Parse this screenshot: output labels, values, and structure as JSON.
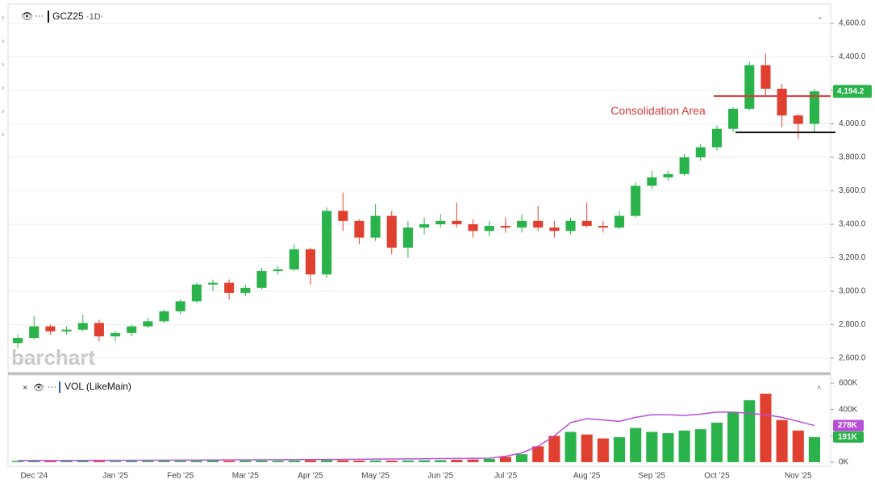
{
  "chart_data": [
    {
      "type": "candlestick",
      "symbol": "GCZ25",
      "interval": "·1D·",
      "watermark": "barchart",
      "categories": [
        null,
        "Dec '24",
        null,
        null,
        null,
        null,
        "Jan '25",
        null,
        null,
        null,
        "Feb '25",
        null,
        null,
        null,
        "Mar '25",
        null,
        null,
        null,
        "Apr '25",
        null,
        null,
        null,
        "May '25",
        null,
        null,
        null,
        "Jun '25",
        null,
        null,
        null,
        "Jul '25",
        null,
        null,
        null,
        null,
        "Aug '25",
        null,
        null,
        null,
        "Sep '25",
        null,
        null,
        null,
        "Oct '25",
        null,
        null,
        null,
        null,
        "Nov '25",
        null
      ],
      "open": [
        2690,
        2720,
        2790,
        2760,
        2770,
        2810,
        2730,
        2750,
        2790,
        2820,
        2880,
        2940,
        3040,
        3050,
        2990,
        3020,
        3120,
        3130,
        3250,
        3100,
        3480,
        3420,
        3320,
        3450,
        3260,
        3380,
        3400,
        3420,
        3400,
        3360,
        3390,
        3380,
        3420,
        3380,
        3360,
        3420,
        3390,
        3380,
        3450,
        3630,
        3680,
        3700,
        3800,
        3860,
        3970,
        4090,
        4350,
        4210,
        4050,
        4000
      ],
      "high": [
        2740,
        2850,
        2800,
        2790,
        2860,
        2830,
        2760,
        2800,
        2840,
        2890,
        2950,
        3050,
        3070,
        3070,
        3040,
        3140,
        3150,
        3280,
        3260,
        3500,
        3590,
        3430,
        3520,
        3480,
        3420,
        3440,
        3460,
        3530,
        3430,
        3420,
        3440,
        3460,
        3510,
        3420,
        3440,
        3530,
        3420,
        3480,
        3650,
        3720,
        3720,
        3820,
        3880,
        3990,
        4100,
        4370,
        4420,
        4240,
        4060,
        4210
      ],
      "low": [
        2660,
        2710,
        2740,
        2740,
        2760,
        2700,
        2700,
        2730,
        2780,
        2810,
        2860,
        2930,
        3000,
        2950,
        2970,
        3010,
        3100,
        3120,
        3040,
        3080,
        3360,
        3280,
        3300,
        3220,
        3200,
        3340,
        3380,
        3380,
        3320,
        3330,
        3350,
        3350,
        3360,
        3320,
        3340,
        3380,
        3350,
        3370,
        3440,
        3610,
        3660,
        3690,
        3780,
        3840,
        3950,
        4080,
        4170,
        3980,
        3910,
        3950
      ],
      "close": [
        2720,
        2790,
        2760,
        2770,
        2810,
        2730,
        2750,
        2790,
        2820,
        2880,
        2940,
        3040,
        3050,
        2990,
        3020,
        3120,
        3130,
        3250,
        3100,
        3480,
        3420,
        3320,
        3450,
        3260,
        3380,
        3400,
        3420,
        3400,
        3360,
        3390,
        3380,
        3420,
        3380,
        3360,
        3420,
        3390,
        3380,
        3450,
        3630,
        3680,
        3700,
        3800,
        3860,
        3970,
        4090,
        4350,
        4210,
        4050,
        4000,
        4194.2
      ],
      "up_color": "#2bb34b",
      "down_color": "#e0402f",
      "ylim": [
        2513,
        4716
      ],
      "yticks": [
        {
          "value": 2600,
          "label": "2,600.0"
        },
        {
          "value": 2800,
          "label": "2,800.0"
        },
        {
          "value": 3000,
          "label": "3,000.0"
        },
        {
          "value": 3200,
          "label": "3,200.0"
        },
        {
          "value": 3400,
          "label": "3,400.0"
        },
        {
          "value": 3600,
          "label": "3,600.0"
        },
        {
          "value": 3800,
          "label": "3,800.0"
        },
        {
          "value": 4000,
          "label": "4,000.0"
        },
        {
          "value": 4200,
          "label": "4,200.0"
        },
        {
          "value": 4400,
          "label": "4,400.0"
        },
        {
          "value": 4600,
          "label": "4,600.0"
        }
      ],
      "grid": true,
      "last_price": {
        "value": 4194.2,
        "label": "4,194.2"
      },
      "levels": [
        {
          "value": 4166,
          "color": "#d93a3a"
        },
        {
          "value": 3949,
          "color": "#111111"
        }
      ],
      "annotation": "Consolidation Area"
    },
    {
      "type": "volume",
      "title": "VOL (LikeMain)",
      "values": [
        9000,
        10000,
        8000,
        9000,
        10000,
        9000,
        8000,
        9000,
        10000,
        11000,
        10000,
        11000,
        12000,
        10000,
        11000,
        12000,
        11000,
        12000,
        14000,
        15000,
        14000,
        12000,
        13000,
        12000,
        13000,
        14000,
        15000,
        18000,
        20000,
        25000,
        40000,
        60000,
        120000,
        200000,
        230000,
        210000,
        180000,
        190000,
        260000,
        230000,
        220000,
        240000,
        250000,
        300000,
        380000,
        470000,
        520000,
        320000,
        240000,
        191000
      ],
      "ma": [
        12000,
        12500,
        13000,
        13000,
        13500,
        14000,
        14000,
        14500,
        15000,
        15000,
        15500,
        16000,
        16500,
        17000,
        17500,
        18000,
        18500,
        19000,
        19500,
        20000,
        21000,
        22000,
        23000,
        24000,
        25000,
        26000,
        27000,
        28000,
        29000,
        30000,
        45000,
        70000,
        120000,
        200000,
        300000,
        330000,
        320000,
        310000,
        340000,
        360000,
        360000,
        355000,
        365000,
        380000,
        380000,
        370000,
        360000,
        340000,
        310000,
        278000
      ],
      "ma_color": "#b84fd6",
      "ylim": [
        -31000,
        661000
      ],
      "yticks": [
        {
          "value": 0,
          "label": "0K"
        },
        {
          "value": 200000,
          "label": "200K"
        },
        {
          "value": 400000,
          "label": "400K"
        },
        {
          "value": 600000,
          "label": "600K"
        }
      ],
      "last_values": [
        {
          "value": 278000,
          "label": "278K",
          "color": "#b84fd6"
        },
        {
          "value": 191000,
          "label": "191K",
          "color": "#2bb34b"
        }
      ]
    }
  ]
}
